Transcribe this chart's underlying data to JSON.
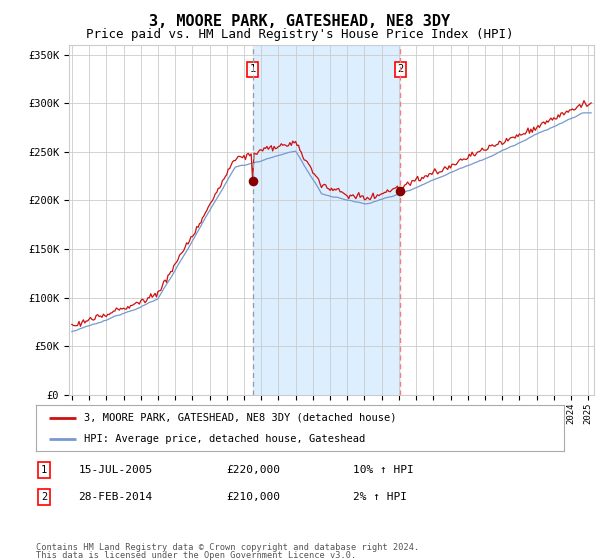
{
  "title": "3, MOORE PARK, GATESHEAD, NE8 3DY",
  "subtitle": "Price paid vs. HM Land Registry's House Price Index (HPI)",
  "title_fontsize": 11,
  "subtitle_fontsize": 9,
  "hpi_color": "#7799cc",
  "price_color": "#cc1111",
  "bg_color": "#ffffff",
  "grid_color": "#cccccc",
  "shading_color": "#ddeeff",
  "marker_color": "#880000",
  "event1_year": 2005,
  "event1_month": 7,
  "event2_year": 2014,
  "event2_month": 2,
  "event1_price_val": 220000,
  "event2_price_val": 210000,
  "event1_date": "15-JUL-2005",
  "event2_date": "28-FEB-2014",
  "event1_price": "£220,000",
  "event2_price": "£210,000",
  "event1_hpi": "10% ↑ HPI",
  "event2_hpi": "2% ↑ HPI",
  "legend_label1": "3, MOORE PARK, GATESHEAD, NE8 3DY (detached house)",
  "legend_label2": "HPI: Average price, detached house, Gateshead",
  "footnote_line1": "Contains HM Land Registry data © Crown copyright and database right 2024.",
  "footnote_line2": "This data is licensed under the Open Government Licence v3.0.",
  "ylim": [
    0,
    360000
  ],
  "yticks": [
    0,
    50000,
    100000,
    150000,
    200000,
    250000,
    300000,
    350000
  ],
  "ytick_labels": [
    "£0",
    "£50K",
    "£100K",
    "£150K",
    "£200K",
    "£250K",
    "£300K",
    "£350K"
  ],
  "start_year": 1995,
  "end_year": 2025,
  "start_month": 1
}
